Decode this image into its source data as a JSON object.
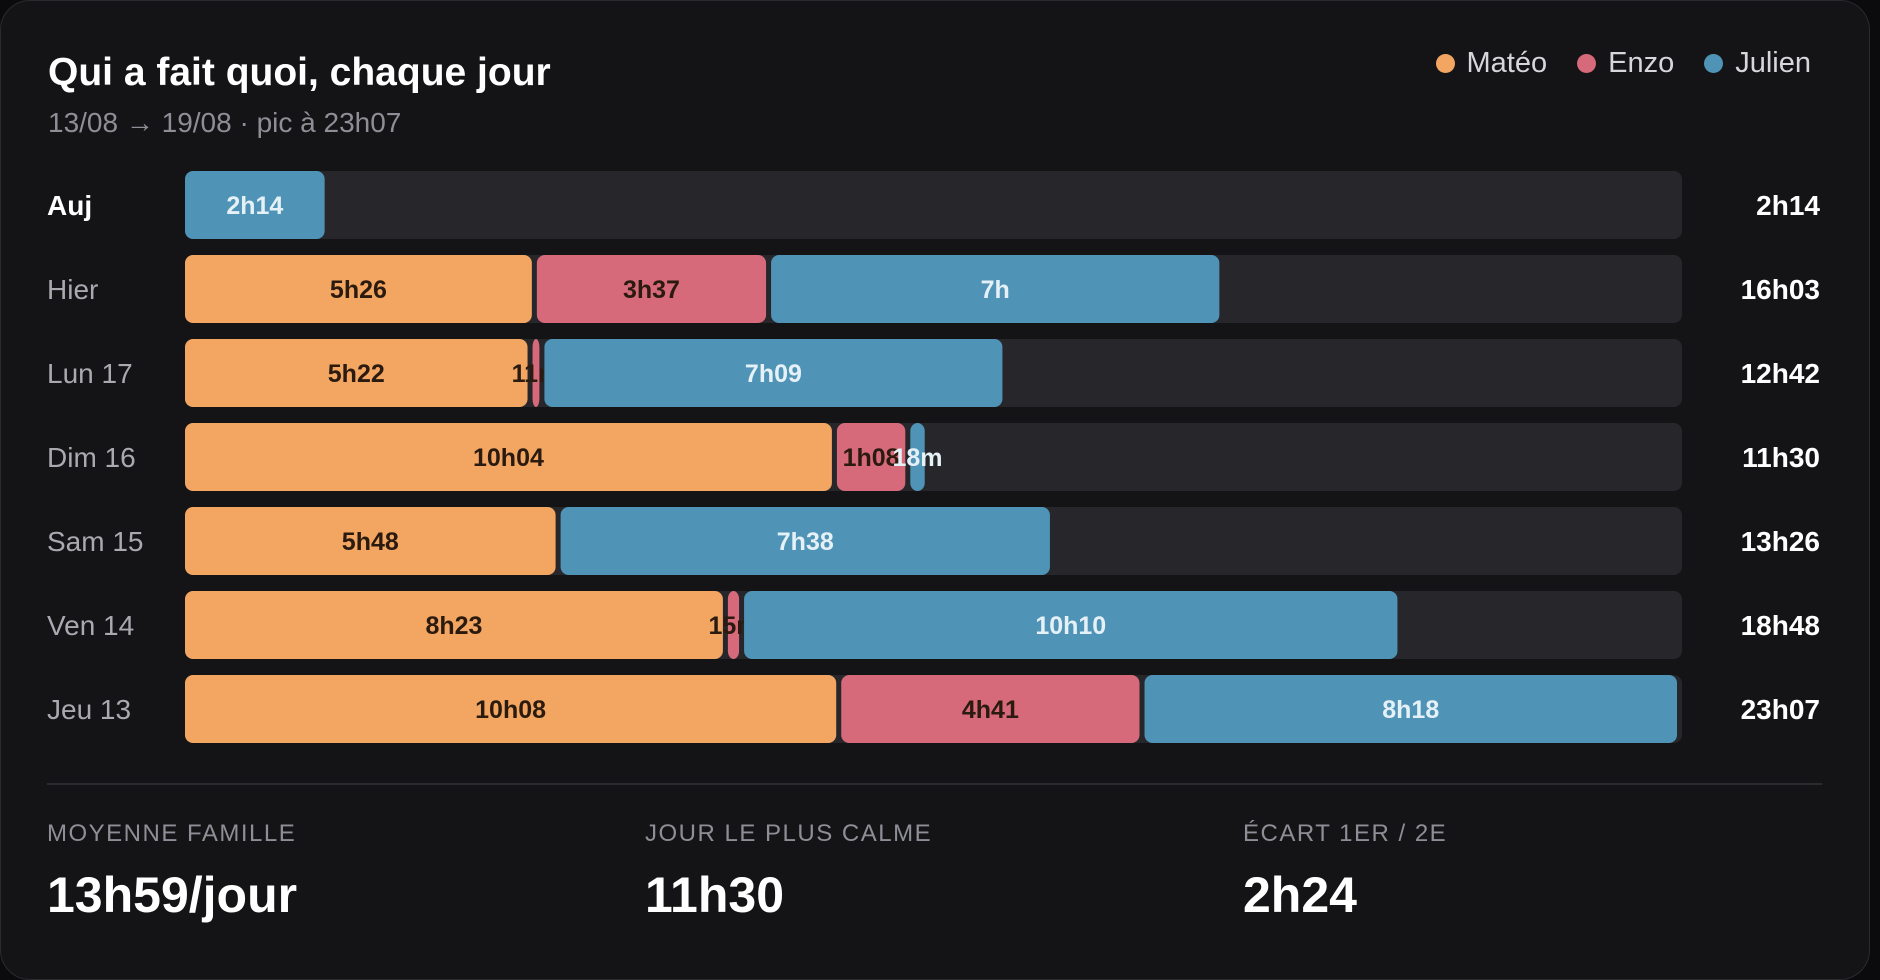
{
  "header": {
    "title": "Qui a fait quoi, chaque jour",
    "subtitle": "13/08 → 19/08 · pic à 23h07"
  },
  "colors": {
    "background": "#141416",
    "track": "#26262b",
    "Matéo": "#f2a661",
    "Enzo": "#d6697a",
    "Julien": "#4f94b7"
  },
  "chart_data": {
    "type": "bar",
    "orientation": "horizontal",
    "stacked": true,
    "unit": "minutes",
    "xlim": [
      0,
      1387
    ],
    "grid": false,
    "legend_position": "top-right",
    "categories": [
      "Auj",
      "Hier",
      "Lun 17",
      "Dim 16",
      "Sam 15",
      "Ven 14",
      "Jeu 13"
    ],
    "series": [
      {
        "name": "Matéo",
        "values": [
          0,
          326,
          322,
          604,
          348,
          503,
          608
        ],
        "labels": [
          "",
          "5h26",
          "5h22",
          "10h04",
          "5h48",
          "8h23",
          "10h08"
        ]
      },
      {
        "name": "Enzo",
        "values": [
          0,
          217,
          11,
          68,
          0,
          15,
          281
        ],
        "labels": [
          "",
          "3h37",
          "11m",
          "1h08",
          "",
          "15m",
          "4h41"
        ]
      },
      {
        "name": "Julien",
        "values": [
          134,
          420,
          429,
          18,
          458,
          610,
          498
        ],
        "labels": [
          "2h14",
          "7h",
          "7h09",
          "18m",
          "7h38",
          "10h10",
          "8h18"
        ]
      }
    ],
    "totals": [
      "2h14",
      "16h03",
      "12h42",
      "11h30",
      "13h26",
      "18h48",
      "23h07"
    ]
  },
  "stats": [
    {
      "label": "MOYENNE FAMILLE",
      "value": "13h59/jour"
    },
    {
      "label": "JOUR LE PLUS CALME",
      "value": "11h30"
    },
    {
      "label": "ÉCART 1ER / 2E",
      "value": "2h24"
    }
  ]
}
